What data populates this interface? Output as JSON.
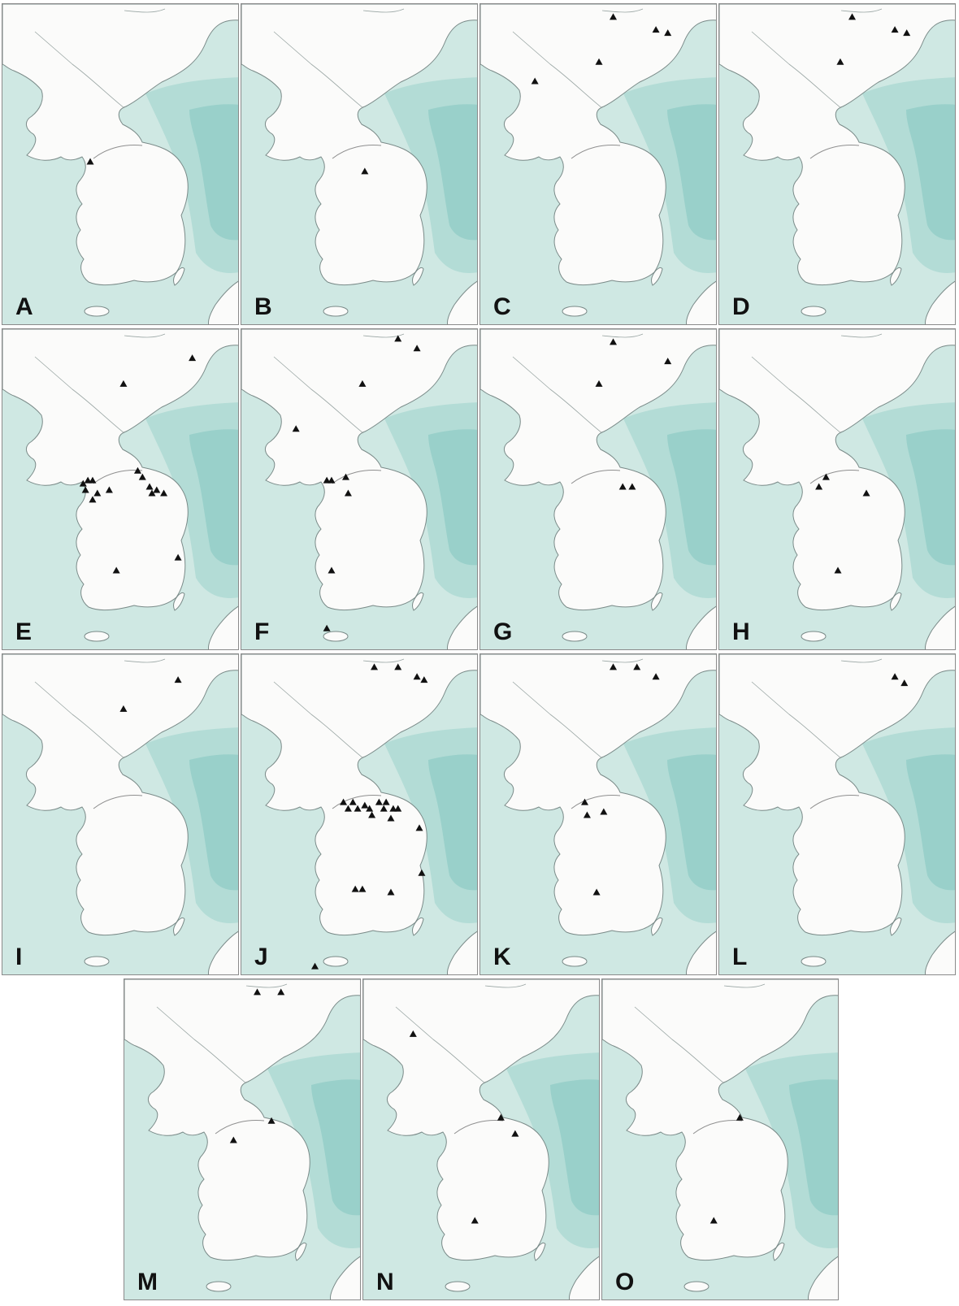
{
  "colors": {
    "sea_shallow": "#cfe8e3",
    "sea_mid": "#b3dcd6",
    "sea_deep": "#99d0ca",
    "land": "#fbfbfa",
    "coast": "#7a8a88",
    "border": "#8a8a8a",
    "marker": "#111111",
    "label": "#111111"
  },
  "marker_icon": "filled-triangle-icon",
  "panels": [
    {
      "label": "A",
      "sites": [
        [
          0.37,
          0.49
        ]
      ]
    },
    {
      "label": "B",
      "sites": [
        [
          0.52,
          0.52
        ]
      ]
    },
    {
      "label": "C",
      "sites": [
        [
          0.56,
          0.04
        ],
        [
          0.74,
          0.08
        ],
        [
          0.79,
          0.09
        ],
        [
          0.5,
          0.18
        ],
        [
          0.23,
          0.24
        ]
      ]
    },
    {
      "label": "D",
      "sites": [
        [
          0.56,
          0.04
        ],
        [
          0.74,
          0.08
        ],
        [
          0.79,
          0.09
        ],
        [
          0.51,
          0.18
        ]
      ]
    },
    {
      "label": "E",
      "sites": [
        [
          0.8,
          0.09
        ],
        [
          0.51,
          0.17
        ],
        [
          0.34,
          0.48
        ],
        [
          0.36,
          0.47
        ],
        [
          0.38,
          0.47
        ],
        [
          0.35,
          0.5
        ],
        [
          0.4,
          0.51
        ],
        [
          0.45,
          0.5
        ],
        [
          0.57,
          0.44
        ],
        [
          0.59,
          0.46
        ],
        [
          0.62,
          0.49
        ],
        [
          0.65,
          0.5
        ],
        [
          0.63,
          0.51
        ],
        [
          0.68,
          0.51
        ],
        [
          0.38,
          0.53
        ],
        [
          0.74,
          0.71
        ],
        [
          0.48,
          0.75
        ]
      ]
    },
    {
      "label": "F",
      "sites": [
        [
          0.66,
          0.03
        ],
        [
          0.74,
          0.06
        ],
        [
          0.51,
          0.17
        ],
        [
          0.23,
          0.31
        ],
        [
          0.36,
          0.47
        ],
        [
          0.38,
          0.47
        ],
        [
          0.44,
          0.46
        ],
        [
          0.45,
          0.51
        ],
        [
          0.38,
          0.75
        ],
        [
          0.36,
          0.93
        ]
      ]
    },
    {
      "label": "G",
      "sites": [
        [
          0.56,
          0.04
        ],
        [
          0.79,
          0.1
        ],
        [
          0.5,
          0.17
        ],
        [
          0.6,
          0.49
        ],
        [
          0.64,
          0.49
        ]
      ]
    },
    {
      "label": "H",
      "sites": [
        [
          0.45,
          0.46
        ],
        [
          0.42,
          0.49
        ],
        [
          0.62,
          0.51
        ],
        [
          0.5,
          0.75
        ]
      ]
    },
    {
      "label": "I",
      "sites": [
        [
          0.74,
          0.08
        ],
        [
          0.51,
          0.17
        ]
      ]
    },
    {
      "label": "J",
      "sites": [
        [
          0.56,
          0.04
        ],
        [
          0.66,
          0.04
        ],
        [
          0.74,
          0.07
        ],
        [
          0.77,
          0.08
        ],
        [
          0.43,
          0.46
        ],
        [
          0.47,
          0.46
        ],
        [
          0.52,
          0.47
        ],
        [
          0.58,
          0.46
        ],
        [
          0.61,
          0.46
        ],
        [
          0.45,
          0.48
        ],
        [
          0.49,
          0.48
        ],
        [
          0.54,
          0.48
        ],
        [
          0.6,
          0.48
        ],
        [
          0.64,
          0.48
        ],
        [
          0.66,
          0.48
        ],
        [
          0.55,
          0.5
        ],
        [
          0.63,
          0.51
        ],
        [
          0.75,
          0.54
        ],
        [
          0.76,
          0.68
        ],
        [
          0.48,
          0.73
        ],
        [
          0.51,
          0.73
        ],
        [
          0.63,
          0.74
        ],
        [
          0.31,
          0.97
        ]
      ]
    },
    {
      "label": "K",
      "sites": [
        [
          0.56,
          0.04
        ],
        [
          0.66,
          0.04
        ],
        [
          0.74,
          0.07
        ],
        [
          0.44,
          0.46
        ],
        [
          0.52,
          0.49
        ],
        [
          0.45,
          0.5
        ],
        [
          0.49,
          0.74
        ]
      ]
    },
    {
      "label": "L",
      "sites": [
        [
          0.74,
          0.07
        ],
        [
          0.78,
          0.09
        ]
      ]
    },
    {
      "label": "M",
      "sites": [
        [
          0.56,
          0.04
        ],
        [
          0.66,
          0.04
        ],
        [
          0.62,
          0.44
        ],
        [
          0.46,
          0.5
        ]
      ]
    },
    {
      "label": "N",
      "sites": [
        [
          0.21,
          0.17
        ],
        [
          0.58,
          0.43
        ],
        [
          0.64,
          0.48
        ],
        [
          0.47,
          0.75
        ]
      ]
    },
    {
      "label": "O",
      "sites": [
        [
          0.58,
          0.43
        ],
        [
          0.47,
          0.75
        ]
      ]
    }
  ]
}
